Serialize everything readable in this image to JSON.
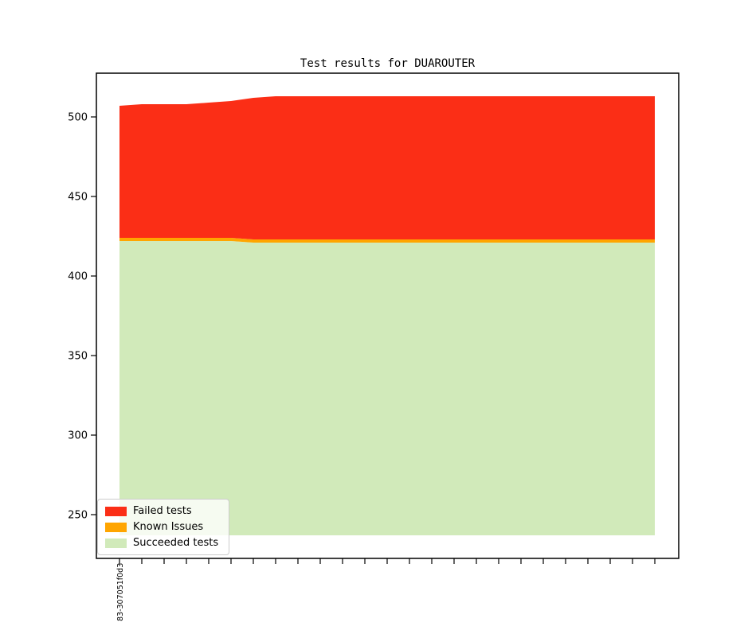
{
  "window": {
    "background_color": "#ffffff"
  },
  "chart_data": {
    "type": "area",
    "stacked": true,
    "title": "Test results for DUAROUTER",
    "xlabel": "",
    "ylabel": "",
    "x_first_tick_label": "83-307051f0d3",
    "num_x_ticks": 25,
    "categories": [
      "83-307051f0d3"
    ],
    "series": [
      {
        "name": "Succeeded tests",
        "color": "#d1eaba",
        "values": [
          422,
          422,
          422,
          422,
          422,
          422,
          421,
          421,
          421,
          421,
          421,
          421,
          421,
          421,
          421,
          421,
          421,
          421,
          421,
          421,
          421,
          421,
          421,
          421,
          421
        ]
      },
      {
        "name": "Known Issues",
        "color": "#ffa500",
        "values": [
          2,
          2,
          2,
          2,
          2,
          2,
          2,
          2,
          2,
          2,
          2,
          2,
          2,
          2,
          2,
          2,
          2,
          2,
          2,
          2,
          2,
          2,
          2,
          2,
          2
        ]
      },
      {
        "name": "Failed tests",
        "color": "#fb2e16",
        "values": [
          83,
          84,
          84,
          84,
          85,
          86,
          89,
          90,
          90,
          90,
          90,
          90,
          90,
          90,
          90,
          90,
          90,
          90,
          90,
          90,
          90,
          90,
          90,
          90,
          90
        ]
      }
    ],
    "baseline_value": 237,
    "ylim": [
      222.5,
      527.5
    ],
    "yticks": [
      250,
      300,
      350,
      400,
      450,
      500
    ],
    "grid": false,
    "legend": {
      "position": "lower left",
      "entries": [
        {
          "label": "Failed tests",
          "color": "#fb2e16"
        },
        {
          "label": "Known Issues",
          "color": "#ffa500"
        },
        {
          "label": "Succeeded tests",
          "color": "#d1eaba"
        }
      ]
    }
  }
}
